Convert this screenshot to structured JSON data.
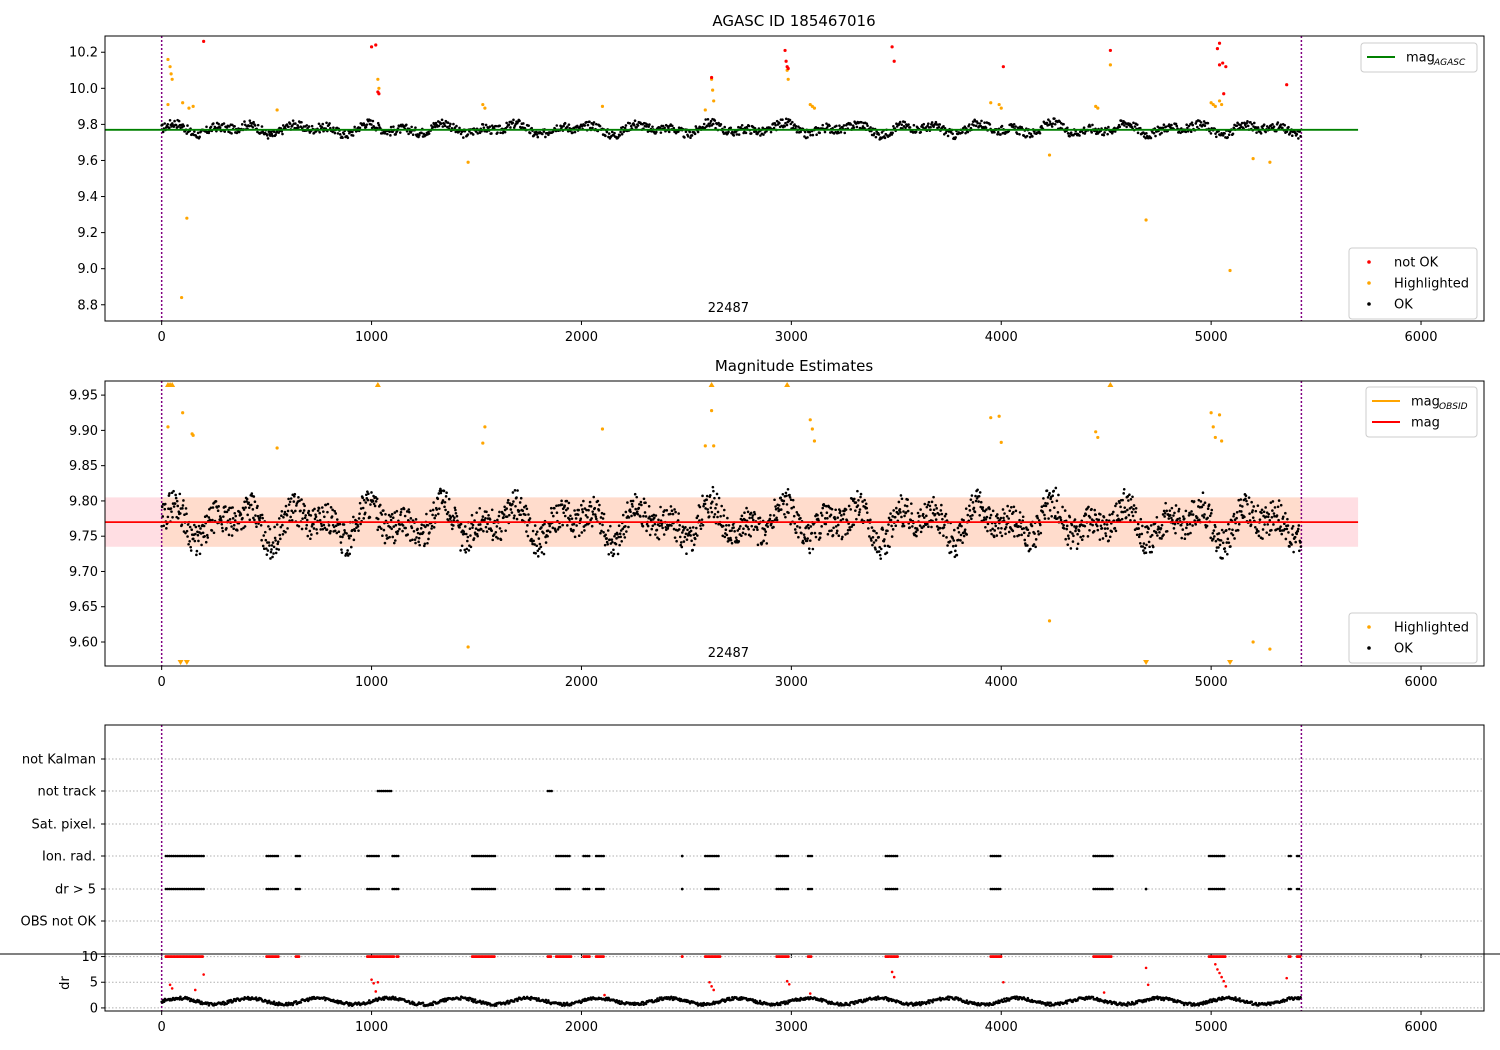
{
  "chart_data": [
    {
      "type": "scatter",
      "title": "AGASC ID 185467016",
      "xlabel": "",
      "ylabel": "",
      "xlim": [
        -270,
        6300
      ],
      "ylim": [
        8.71,
        10.29
      ],
      "x_ticks": [
        0,
        1000,
        2000,
        3000,
        4000,
        5000,
        6000
      ],
      "x_tick_labels": [
        "0",
        "1000",
        "2000",
        "3000",
        "4000",
        "5000",
        "6000"
      ],
      "y_ticks": [
        8.8,
        9.0,
        9.2,
        9.4,
        9.6,
        9.8,
        10.0,
        10.2
      ],
      "y_tick_labels": [
        "8.8",
        "9.0",
        "9.2",
        "9.4",
        "9.6",
        "9.8",
        "10.0",
        "10.2"
      ],
      "annotation": "22487",
      "annotation_x": 2700,
      "vlines": [
        0,
        5430
      ],
      "hline": {
        "y": 9.77,
        "x_range": [
          -270,
          5700
        ],
        "color": "#008000"
      },
      "baseline": 9.775,
      "ok_color": "#000000",
      "highlight_color": "#ffa500",
      "notok_color": "#ff0000",
      "legend_top": [
        {
          "label": "mag",
          "sub": "AGASC",
          "color": "#008000",
          "kind": "line"
        }
      ],
      "legend_bottom": [
        {
          "label": "not OK",
          "color": "#ff0000",
          "kind": "dot"
        },
        {
          "label": "Highlighted",
          "color": "#ffa500",
          "kind": "dot"
        },
        {
          "label": "OK",
          "color": "#000000",
          "kind": "dot"
        }
      ],
      "series": [
        {
          "name": "Highlighted",
          "points": [
            [
              30,
              10.16
            ],
            [
              40,
              10.12
            ],
            [
              45,
              10.08
            ],
            [
              50,
              10.05
            ],
            [
              30,
              9.91
            ],
            [
              100,
              9.92
            ],
            [
              130,
              9.89
            ],
            [
              150,
              9.9
            ],
            [
              120,
              9.28
            ],
            [
              95,
              8.84
            ],
            [
              550,
              9.88
            ],
            [
              1030,
              10.05
            ],
            [
              1035,
              10.0
            ],
            [
              1460,
              9.59
            ],
            [
              1530,
              9.91
            ],
            [
              1540,
              9.89
            ],
            [
              2100,
              9.9
            ],
            [
              2590,
              9.88
            ],
            [
              2620,
              10.05
            ],
            [
              2625,
              9.99
            ],
            [
              2630,
              9.93
            ],
            [
              2980,
              10.1
            ],
            [
              2985,
              10.05
            ],
            [
              3090,
              9.91
            ],
            [
              3100,
              9.9
            ],
            [
              3110,
              9.89
            ],
            [
              3950,
              9.92
            ],
            [
              3990,
              9.91
            ],
            [
              4000,
              9.89
            ],
            [
              4230,
              9.63
            ],
            [
              4450,
              9.9
            ],
            [
              4460,
              9.89
            ],
            [
              4520,
              10.13
            ],
            [
              4690,
              9.27
            ],
            [
              5000,
              9.92
            ],
            [
              5010,
              9.91
            ],
            [
              5020,
              9.9
            ],
            [
              5040,
              9.93
            ],
            [
              5050,
              9.91
            ],
            [
              5090,
              8.99
            ],
            [
              5200,
              9.61
            ],
            [
              5280,
              9.59
            ]
          ]
        },
        {
          "name": "not OK",
          "points": [
            [
              200,
              10.26
            ],
            [
              1000,
              10.23
            ],
            [
              1020,
              10.24
            ],
            [
              1030,
              9.98
            ],
            [
              1035,
              9.97
            ],
            [
              2620,
              10.06
            ],
            [
              2970,
              10.21
            ],
            [
              2975,
              10.15
            ],
            [
              2980,
              10.12
            ],
            [
              2985,
              10.11
            ],
            [
              3480,
              10.23
            ],
            [
              3490,
              10.15
            ],
            [
              4010,
              10.12
            ],
            [
              4520,
              10.21
            ],
            [
              5030,
              10.22
            ],
            [
              5040,
              10.25
            ],
            [
              5040,
              10.13
            ],
            [
              5055,
              10.14
            ],
            [
              5060,
              9.97
            ],
            [
              5070,
              10.12
            ],
            [
              5360,
              10.02
            ]
          ]
        }
      ]
    },
    {
      "type": "scatter",
      "title": "Magnitude Estimates",
      "xlabel": "",
      "ylabel": "",
      "xlim": [
        -270,
        6300
      ],
      "ylim": [
        9.566,
        9.97
      ],
      "x_ticks": [
        0,
        1000,
        2000,
        3000,
        4000,
        5000,
        6000
      ],
      "x_tick_labels": [
        "0",
        "1000",
        "2000",
        "3000",
        "4000",
        "5000",
        "6000"
      ],
      "y_ticks": [
        9.6,
        9.65,
        9.7,
        9.75,
        9.8,
        9.85,
        9.9,
        9.95
      ],
      "y_tick_labels": [
        "9.60",
        "9.65",
        "9.70",
        "9.75",
        "9.80",
        "9.85",
        "9.90",
        "9.95"
      ],
      "annotation": "22487",
      "annotation_x": 2700,
      "vlines": [
        0,
        5430
      ],
      "band": {
        "y_range": [
          9.735,
          9.805
        ],
        "x_range": [
          -270,
          5700
        ],
        "color": "#ffb6c1"
      },
      "inner_band": {
        "y_range": [
          9.735,
          9.805
        ],
        "x_range": [
          0,
          5430
        ],
        "color": "#ffdab9"
      },
      "hline": {
        "y": 9.77,
        "x_range": [
          -270,
          5700
        ],
        "color": "#ff0000"
      },
      "baseline": 9.77,
      "ok_color": "#000000",
      "highlight_color": "#ffa500",
      "legend_top": [
        {
          "label": "mag",
          "sub": "OBSID",
          "color": "#ffa500",
          "kind": "line"
        },
        {
          "label": "mag",
          "sub": "",
          "color": "#ff0000",
          "kind": "line"
        }
      ],
      "legend_bottom": [
        {
          "label": "Highlighted",
          "color": "#ffa500",
          "kind": "dot"
        },
        {
          "label": "OK",
          "color": "#000000",
          "kind": "dot"
        }
      ],
      "markers_up": [
        30,
        40,
        50,
        1030,
        2620,
        2980,
        4520
      ],
      "markers_down": [
        90,
        120,
        4690,
        5090
      ],
      "series": [
        {
          "name": "Highlighted",
          "points": [
            [
              30,
              9.905
            ],
            [
              100,
              9.925
            ],
            [
              145,
              9.895
            ],
            [
              150,
              9.893
            ],
            [
              550,
              9.875
            ],
            [
              1460,
              9.593
            ],
            [
              1530,
              9.882
            ],
            [
              1540,
              9.905
            ],
            [
              2100,
              9.902
            ],
            [
              2590,
              9.878
            ],
            [
              2620,
              9.928
            ],
            [
              2630,
              9.878
            ],
            [
              3090,
              9.915
            ],
            [
              3100,
              9.902
            ],
            [
              3110,
              9.885
            ],
            [
              3950,
              9.918
            ],
            [
              3990,
              9.92
            ],
            [
              4000,
              9.883
            ],
            [
              4230,
              9.63
            ],
            [
              4450,
              9.898
            ],
            [
              4460,
              9.89
            ],
            [
              5000,
              9.925
            ],
            [
              5010,
              9.905
            ],
            [
              5020,
              9.89
            ],
            [
              5040,
              9.922
            ],
            [
              5050,
              9.885
            ],
            [
              5200,
              9.6
            ],
            [
              5280,
              9.59
            ]
          ]
        }
      ]
    },
    {
      "type": "scatter",
      "title": "",
      "xlabel": "",
      "ylabel": "",
      "xlim": [
        -270,
        6300
      ],
      "x_ticks": [
        0,
        1000,
        2000,
        3000,
        4000,
        5000,
        6000
      ],
      "x_tick_labels": [
        "0",
        "1000",
        "2000",
        "3000",
        "4000",
        "5000",
        "6000"
      ],
      "categories": [
        "not Kalman",
        "not track",
        "Sat. pixel.",
        "Ion. rad.",
        "dr > 5",
        "OBS not OK"
      ],
      "vlines": [
        0,
        5430
      ],
      "flag_segments": {
        "not Kalman": [],
        "not track": [
          [
            1030,
            1100
          ],
          [
            1840,
            1860
          ]
        ],
        "Sat. pixel.": [],
        "Ion. rad.": [
          [
            20,
            200
          ],
          [
            500,
            560
          ],
          [
            640,
            660
          ],
          [
            980,
            1040
          ],
          [
            1100,
            1130
          ],
          [
            1480,
            1590
          ],
          [
            1880,
            1950
          ],
          [
            2010,
            2040
          ],
          [
            2070,
            2110
          ],
          [
            2480,
            2480
          ],
          [
            2590,
            2660
          ],
          [
            2930,
            2990
          ],
          [
            3080,
            3100
          ],
          [
            3450,
            3510
          ],
          [
            3950,
            4000
          ],
          [
            4440,
            4530
          ],
          [
            4990,
            5070
          ],
          [
            5370,
            5380
          ],
          [
            5410,
            5420
          ]
        ],
        "dr > 5": [
          [
            20,
            200
          ],
          [
            500,
            560
          ],
          [
            640,
            660
          ],
          [
            980,
            1040
          ],
          [
            1100,
            1130
          ],
          [
            1480,
            1590
          ],
          [
            1880,
            1950
          ],
          [
            2010,
            2040
          ],
          [
            2070,
            2110
          ],
          [
            2480,
            2480
          ],
          [
            2590,
            2660
          ],
          [
            2930,
            2990
          ],
          [
            3080,
            3100
          ],
          [
            3450,
            3510
          ],
          [
            3950,
            4000
          ],
          [
            4440,
            4530
          ],
          [
            4690,
            4690
          ],
          [
            4990,
            5070
          ],
          [
            5370,
            5380
          ],
          [
            5410,
            5420
          ]
        ],
        "OBS not OK": []
      }
    },
    {
      "type": "scatter",
      "title": "",
      "xlabel": "",
      "ylabel": "dr",
      "xlim": [
        -270,
        6300
      ],
      "ylim": [
        -0.6,
        10.5
      ],
      "x_ticks": [
        0,
        1000,
        2000,
        3000,
        4000,
        5000,
        6000
      ],
      "x_tick_labels": [
        "0",
        "1000",
        "2000",
        "3000",
        "4000",
        "5000",
        "6000"
      ],
      "y_ticks": [
        0,
        5,
        10
      ],
      "y_tick_labels": [
        "0",
        "5",
        "10"
      ],
      "vlines": [
        0,
        5430
      ],
      "clip_segments": [
        [
          20,
          200
        ],
        [
          500,
          560
        ],
        [
          640,
          660
        ],
        [
          980,
          1110
        ],
        [
          1120,
          1130
        ],
        [
          1480,
          1590
        ],
        [
          1840,
          1860
        ],
        [
          1880,
          1950
        ],
        [
          2010,
          2040
        ],
        [
          2070,
          2110
        ],
        [
          2480,
          2480
        ],
        [
          2590,
          2660
        ],
        [
          2930,
          2990
        ],
        [
          3080,
          3100
        ],
        [
          3450,
          3510
        ],
        [
          3950,
          4000
        ],
        [
          4440,
          4530
        ],
        [
          4990,
          5070
        ],
        [
          5370,
          5380
        ],
        [
          5410,
          5430
        ]
      ],
      "highlight_points": [
        [
          40,
          4.5
        ],
        [
          50,
          3.8
        ],
        [
          160,
          3.5
        ],
        [
          200,
          6.5
        ],
        [
          1000,
          5.5
        ],
        [
          1010,
          4.8
        ],
        [
          1020,
          3.2
        ],
        [
          1030,
          5.0
        ],
        [
          2110,
          2.5
        ],
        [
          2610,
          5.0
        ],
        [
          2620,
          4.2
        ],
        [
          2630,
          3.5
        ],
        [
          2980,
          5.2
        ],
        [
          2990,
          4.6
        ],
        [
          3090,
          2.8
        ],
        [
          3480,
          7.0
        ],
        [
          3490,
          6.0
        ],
        [
          4010,
          5.0
        ],
        [
          4490,
          3.0
        ],
        [
          4690,
          7.8
        ],
        [
          4700,
          4.5
        ],
        [
          5020,
          8.5
        ],
        [
          5030,
          7.5
        ],
        [
          5040,
          6.8
        ],
        [
          5050,
          6.0
        ],
        [
          5060,
          5.2
        ],
        [
          5070,
          4.2
        ],
        [
          5360,
          5.8
        ]
      ]
    }
  ]
}
